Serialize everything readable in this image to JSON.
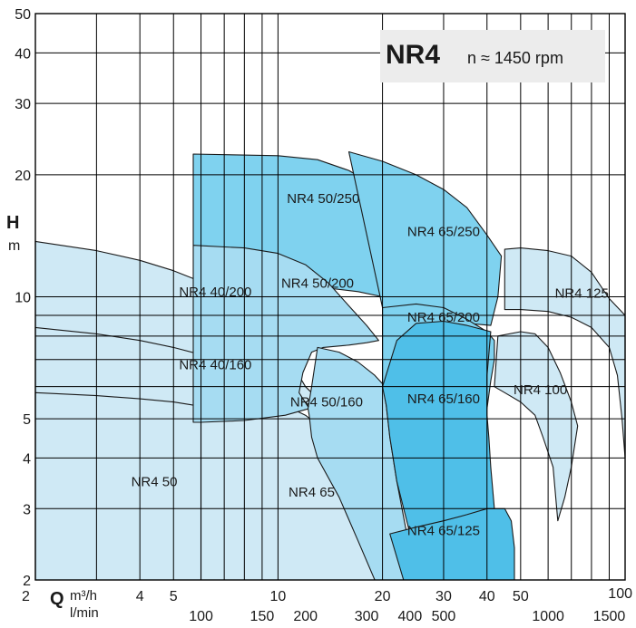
{
  "chart_data": {
    "type": "area",
    "title": "NR4",
    "subtitle": "n ≈ 1450 rpm",
    "xscale": "log",
    "yscale": "log",
    "xlim": [
      2,
      100
    ],
    "ylim": [
      2,
      50
    ],
    "grid": true,
    "y_axis": {
      "label": "H",
      "unit": "m",
      "ticks": [
        2,
        3,
        4,
        5,
        10,
        20,
        30,
        40,
        50
      ],
      "tick_labels": [
        "2",
        "3",
        "4",
        "5",
        "10",
        "20",
        "30",
        "40",
        "50"
      ]
    },
    "x_axis": {
      "label": "Q",
      "unit_primary": "m³/h",
      "unit_secondary": "l/min",
      "ticks": [
        2,
        4,
        5,
        10,
        20,
        30,
        40,
        50,
        100
      ],
      "tick_labels": [
        "2",
        "4",
        "5",
        "10",
        "20",
        "30",
        "40",
        "50",
        "100"
      ],
      "secondary_ticks_lmin": [
        100,
        150,
        200,
        300,
        400,
        500,
        1000,
        1500
      ],
      "secondary_tick_labels": [
        "100",
        "150",
        "200",
        "300",
        "400",
        "500",
        "1000",
        "1500"
      ]
    },
    "series": [
      {
        "name": "NR4 40/200",
        "color": "#cfe9f5",
        "label_color": "#1a1a1a",
        "label_at": [
          6.6,
          10.3
        ],
        "polygon": [
          [
            2,
            13.7
          ],
          [
            3,
            13
          ],
          [
            4,
            12.3
          ],
          [
            5,
            11.6
          ],
          [
            6,
            10.9
          ],
          [
            7,
            10.2
          ],
          [
            8,
            9.5
          ],
          [
            9,
            8.7
          ],
          [
            10,
            7.8
          ],
          [
            11,
            6.8
          ],
          [
            12,
            6.0
          ],
          [
            12.5,
            5.8
          ],
          [
            12.5,
            5.5
          ],
          [
            10.5,
            5.1
          ],
          [
            8,
            4.95
          ],
          [
            6,
            4.9
          ],
          [
            2,
            4.9
          ]
        ]
      },
      {
        "name": "NR4 40/160",
        "color": "#cfe9f5",
        "label_color": "#1a1a1a",
        "label_at": [
          6.6,
          6.8
        ],
        "polygon": [
          [
            2,
            8.4
          ],
          [
            3,
            8.1
          ],
          [
            4,
            7.8
          ],
          [
            5,
            7.5
          ],
          [
            6,
            7.2
          ],
          [
            7,
            6.8
          ],
          [
            8,
            6.3
          ],
          [
            9,
            5.7
          ],
          [
            10,
            5.1
          ],
          [
            10.5,
            4.8
          ],
          [
            11,
            4.3
          ],
          [
            11.5,
            3.8
          ],
          [
            12,
            3.2
          ],
          [
            12.5,
            2.5
          ],
          [
            12.8,
            2
          ],
          [
            2,
            2
          ]
        ]
      },
      {
        "name": "NR4 50",
        "color": "#cfe9f5",
        "label_color": "#e3302a",
        "label_at": [
          4.4,
          3.5
        ],
        "polygon": [
          [
            2,
            5.8
          ],
          [
            3,
            5.7
          ],
          [
            4,
            5.6
          ],
          [
            5,
            5.5
          ],
          [
            5.7,
            5.4
          ],
          [
            6.3,
            5.0
          ],
          [
            7,
            4.5
          ],
          [
            8,
            3.8
          ],
          [
            9,
            3.0
          ],
          [
            10,
            2.4
          ],
          [
            10.5,
            2
          ],
          [
            2,
            2
          ]
        ]
      },
      {
        "name": "NR4 65",
        "color": "#cfe9f5",
        "label_color": "#e3302a",
        "label_at": [
          12.5,
          3.3
        ],
        "polygon": [
          [
            6,
            5.8
          ],
          [
            7,
            5.8
          ],
          [
            8,
            5.75
          ],
          [
            10,
            5.5
          ],
          [
            12,
            5.1
          ],
          [
            14,
            4.6
          ],
          [
            16,
            4.0
          ],
          [
            18,
            3.3
          ],
          [
            20,
            2.6
          ],
          [
            21,
            2.2
          ],
          [
            21,
            2
          ],
          [
            6,
            2
          ]
        ]
      },
      {
        "name": "NR4 50/250",
        "color": "#7fd2ef",
        "label_color": "#1a1a1a",
        "label_at": [
          13.5,
          17.5
        ],
        "polygon": [
          [
            5.7,
            22.5
          ],
          [
            10,
            22.3
          ],
          [
            13,
            21.8
          ],
          [
            16,
            20.5
          ],
          [
            19,
            18.8
          ],
          [
            22,
            16.8
          ],
          [
            25,
            14.5
          ],
          [
            26,
            11.8
          ],
          [
            23.5,
            9.5
          ],
          [
            20,
            10
          ],
          [
            17,
            10.3
          ],
          [
            14,
            10.5
          ],
          [
            12,
            10.8
          ],
          [
            10,
            11.5
          ],
          [
            8,
            12.5
          ],
          [
            6,
            13.2
          ],
          [
            5.7,
            13.4
          ]
        ]
      },
      {
        "name": "NR4 50/200",
        "color": "#a6dcf2",
        "label_color": "#1a1a1a",
        "label_at": [
          13,
          10.8
        ],
        "polygon": [
          [
            5.7,
            13.4
          ],
          [
            8,
            13.2
          ],
          [
            10,
            12.8
          ],
          [
            12,
            12.0
          ],
          [
            14,
            10.8
          ],
          [
            16,
            9.5
          ],
          [
            18,
            8.5
          ],
          [
            19.5,
            7.8
          ],
          [
            18,
            7.7
          ],
          [
            16,
            7.6
          ],
          [
            13.5,
            7.5
          ],
          [
            12.5,
            7.3
          ],
          [
            11.8,
            6.5
          ],
          [
            11.5,
            5.8
          ],
          [
            12.3,
            5.3
          ],
          [
            10.5,
            5.1
          ],
          [
            8,
            4.95
          ],
          [
            6,
            4.9
          ],
          [
            5.7,
            4.9
          ]
        ]
      },
      {
        "name": "NR4 50/160",
        "color": "#a6dcf2",
        "label_color": "#1a1a1a",
        "label_at": [
          13.8,
          5.5
        ],
        "polygon": [
          [
            13,
            7.5
          ],
          [
            15,
            7.3
          ],
          [
            17,
            6.9
          ],
          [
            19,
            6.4
          ],
          [
            20,
            6.1
          ],
          [
            20.5,
            5.4
          ],
          [
            21,
            4.5
          ],
          [
            22,
            3.5
          ],
          [
            23.5,
            2.6
          ],
          [
            24,
            2
          ],
          [
            19,
            2
          ],
          [
            17,
            2.5
          ],
          [
            15,
            3.2
          ],
          [
            13,
            4.0
          ],
          [
            12.5,
            4.5
          ],
          [
            12.3,
            5.1
          ],
          [
            12.2,
            5.3
          ],
          [
            12.5,
            6
          ],
          [
            13,
            7.5
          ]
        ]
      },
      {
        "name": "NR4 65/250",
        "color": "#7fd2ef",
        "label_color": "#1a1a1a",
        "label_at": [
          30,
          14.5
        ],
        "polygon": [
          [
            16,
            22.8
          ],
          [
            20,
            21.6
          ],
          [
            25,
            20
          ],
          [
            30,
            18.4
          ],
          [
            35,
            16.6
          ],
          [
            40,
            14.2
          ],
          [
            44,
            12.6
          ],
          [
            43,
            10
          ],
          [
            41,
            8.5
          ],
          [
            35,
            8.6
          ],
          [
            28,
            8.8
          ],
          [
            23,
            9.2
          ],
          [
            20,
            9.4
          ]
        ]
      },
      {
        "name": "NR4 65/200",
        "color": "#7fd2ef",
        "label_color": "#1a1a1a",
        "label_at": [
          30,
          8.9
        ],
        "polygon": [
          [
            20,
            9.4
          ],
          [
            25,
            9.6
          ],
          [
            30,
            9.4
          ],
          [
            35,
            8.8
          ],
          [
            40,
            8.2
          ],
          [
            42,
            7.8
          ],
          [
            42,
            7
          ],
          [
            41,
            6.2
          ],
          [
            40,
            5.3
          ],
          [
            38,
            5.2
          ],
          [
            35,
            5.6
          ],
          [
            30,
            6.0
          ],
          [
            25,
            6.4
          ],
          [
            21,
            6.4
          ],
          [
            20.3,
            6.2
          ],
          [
            20,
            6
          ]
        ]
      },
      {
        "name": "NR4 65/160",
        "color": "#4fbfe8",
        "label_color": "#1a1a1a",
        "label_at": [
          30,
          5.6
        ],
        "polygon": [
          [
            20,
            6.0
          ],
          [
            22,
            7.8
          ],
          [
            25,
            8.6
          ],
          [
            30,
            8.7
          ],
          [
            35,
            8.5
          ],
          [
            41,
            8.2
          ],
          [
            40,
            6.4
          ],
          [
            40,
            5.1
          ],
          [
            40.5,
            4.5
          ],
          [
            41,
            3.8
          ],
          [
            42,
            3.0
          ],
          [
            43,
            2.4
          ],
          [
            44,
            2
          ],
          [
            24,
            2
          ],
          [
            24,
            2.6
          ],
          [
            22,
            3.5
          ],
          [
            21,
            4.5
          ],
          [
            20.5,
            5.4
          ]
        ]
      },
      {
        "name": "NR4 65/125",
        "color": "#4fbfe8",
        "label_color": "#1a1a1a",
        "label_at": [
          30,
          2.65
        ],
        "polygon": [
          [
            21,
            2.6
          ],
          [
            25,
            2.7
          ],
          [
            30,
            2.8
          ],
          [
            35,
            2.9
          ],
          [
            40,
            3.0
          ],
          [
            45,
            3.0
          ],
          [
            47,
            2.8
          ],
          [
            48,
            2.4
          ],
          [
            48,
            2
          ],
          [
            23,
            2
          ]
        ]
      },
      {
        "name": "NR4 125",
        "color": "#cfe9f5",
        "label_color": "#e3302a",
        "label_at": [
          75,
          10.2
        ],
        "polygon": [
          [
            45,
            13.1
          ],
          [
            50,
            13.2
          ],
          [
            60,
            13
          ],
          [
            70,
            12.6
          ],
          [
            80,
            11.5
          ],
          [
            90,
            9.9
          ],
          [
            100,
            9.0
          ],
          [
            100,
            4.0
          ],
          [
            98,
            5.0
          ],
          [
            95,
            6.4
          ],
          [
            90,
            7.5
          ],
          [
            80,
            8.4
          ],
          [
            70,
            8.9
          ],
          [
            60,
            9.2
          ],
          [
            50,
            9.3
          ],
          [
            45,
            9.3
          ]
        ]
      },
      {
        "name": "NR4 100",
        "color": "#cfe9f5",
        "label_color": "#e3302a",
        "label_at": [
          57,
          5.9
        ],
        "polygon": [
          [
            43,
            8.0
          ],
          [
            50,
            8.2
          ],
          [
            55,
            8.1
          ],
          [
            60,
            7.5
          ],
          [
            65,
            6.5
          ],
          [
            70,
            5.5
          ],
          [
            73,
            4.8
          ],
          [
            70,
            3.8
          ],
          [
            67,
            3.2
          ],
          [
            64,
            2.8
          ],
          [
            62,
            3.8
          ],
          [
            58,
            4.5
          ],
          [
            55,
            5.1
          ],
          [
            50,
            5.5
          ],
          [
            45,
            5.8
          ],
          [
            42,
            6.0
          ]
        ]
      }
    ]
  }
}
